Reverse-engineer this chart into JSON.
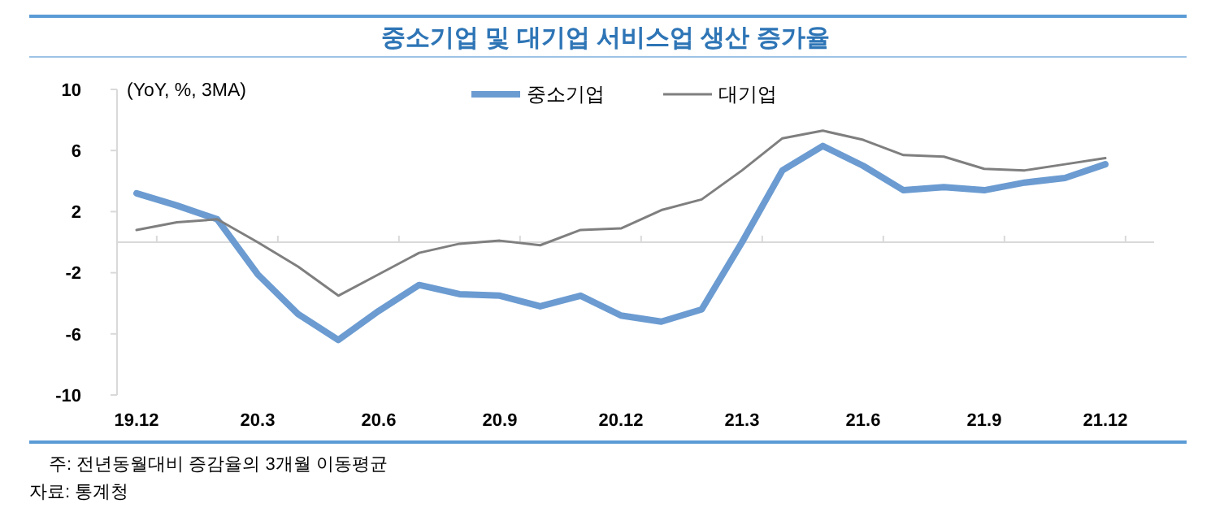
{
  "chart_data": {
    "type": "line",
    "title": "중소기업 및 대기업 서비스업 생산 증가율",
    "categories": [
      "19.12",
      null,
      null,
      "20.3",
      null,
      null,
      "20.6",
      null,
      null,
      "20.9",
      null,
      null,
      "20.12",
      null,
      null,
      "21.3",
      null,
      null,
      "21.6",
      null,
      null,
      "21.9",
      null,
      null,
      "21.12"
    ],
    "series": [
      {
        "name": "중소기업",
        "color": "#6b9bd1",
        "values": [
          3.2,
          2.4,
          1.5,
          -2.1,
          -4.7,
          -6.4,
          -4.5,
          -2.8,
          -3.4,
          -3.5,
          -4.2,
          -3.5,
          -4.8,
          -5.2,
          -4.4,
          0.0,
          4.7,
          6.3,
          5.0,
          3.4,
          3.6,
          3.4,
          3.9,
          4.2,
          5.1
        ]
      },
      {
        "name": "대기업",
        "color": "#7f7f7f",
        "values": [
          0.8,
          1.3,
          1.5,
          0.0,
          -1.6,
          -3.5,
          -2.1,
          -0.7,
          -0.1,
          0.1,
          -0.2,
          0.8,
          0.9,
          2.1,
          2.8,
          4.7,
          6.8,
          7.3,
          6.7,
          5.7,
          5.6,
          4.8,
          4.7,
          5.1,
          5.5
        ]
      }
    ],
    "ylim": [
      -10,
      10
    ],
    "yticks": [
      -10,
      -6,
      -2,
      2,
      6,
      10
    ],
    "legend": "top",
    "annotations": [
      "(YoY, %, 3MA)",
      "주: 전년동월대비 증감율의 3개월 이동평균",
      "자료: 통계청"
    ]
  }
}
